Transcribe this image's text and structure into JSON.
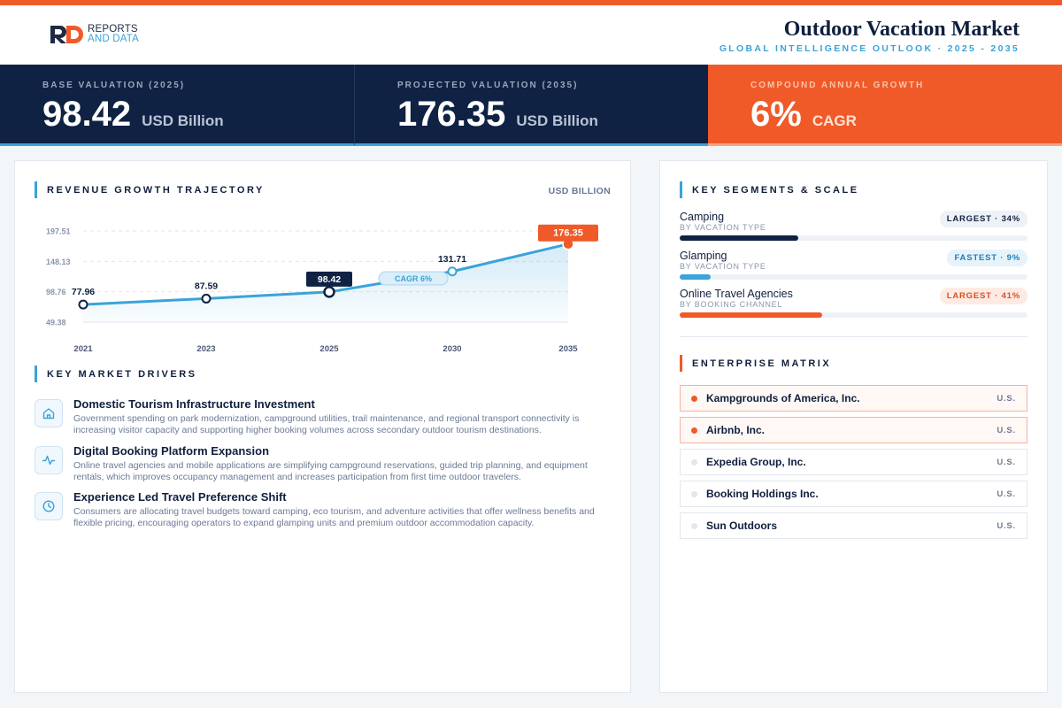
{
  "brand": {
    "logo_line1": "REPORTS",
    "logo_line2": "AND DATA"
  },
  "header": {
    "title": "Outdoor Vacation Market",
    "subtitle": "GLOBAL INTELLIGENCE OUTLOOK · 2025 - 2035"
  },
  "kpis": [
    {
      "label": "BASE VALUATION (2025)",
      "value": "98.42",
      "unit": "USD Billion"
    },
    {
      "label": "PROJECTED VALUATION (2035)",
      "value": "176.35",
      "unit": "USD Billion"
    },
    {
      "label": "COMPOUND ANNUAL GROWTH",
      "value": "6%",
      "unit": "CAGR"
    }
  ],
  "revenue": {
    "section_title": "REVENUE GROWTH TRAJECTORY",
    "unit_label": "USD BILLION",
    "cagr_pill": "CAGR 6%"
  },
  "chart_data": {
    "type": "area",
    "title": "REVENUE GROWTH TRAJECTORY",
    "ylabel": "USD BILLION",
    "x": [
      "2021",
      "2023",
      "2025",
      "2030",
      "2035"
    ],
    "values": [
      77.96,
      87.59,
      98.42,
      131.71,
      176.35
    ],
    "value_labels": [
      "77.96",
      "87.59",
      "98.42",
      "131.71",
      "176.35"
    ],
    "y_ticks": [
      49.38,
      98.76,
      148.13,
      197.51
    ],
    "y_tick_labels": [
      "49.38",
      "98.76",
      "148.13",
      "197.51"
    ],
    "ylim": [
      49.38,
      197.51
    ],
    "grid": true,
    "annotation": "CAGR 6%",
    "highlight_points": [
      "2025",
      "2035"
    ],
    "colors": {
      "line": "#3aa3d9",
      "base_marker": "#0f2243",
      "end_marker": "#f05a28"
    }
  },
  "drivers": {
    "section_title": "KEY MARKET DRIVERS",
    "items": [
      {
        "icon": "home-icon",
        "title": "Domestic Tourism Infrastructure Investment",
        "desc": "Government spending on park modernization, campground utilities, trail maintenance, and regional transport connectivity is increasing visitor capacity and supporting higher booking volumes across secondary outdoor tourism destinations."
      },
      {
        "icon": "activity-icon",
        "title": "Digital Booking Platform Expansion",
        "desc": "Online travel agencies and mobile applications are simplifying campground reservations, guided trip planning, and equipment rentals, which improves occupancy management and increases participation from first time outdoor travelers."
      },
      {
        "icon": "clock-icon",
        "title": "Experience Led Travel Preference Shift",
        "desc": "Consumers are allocating travel budgets toward camping, eco tourism, and adventure activities that offer wellness benefits and flexible pricing, encouraging operators to expand glamping units and premium outdoor accommodation capacity."
      }
    ]
  },
  "segments": {
    "section_title": "KEY SEGMENTS & SCALE",
    "items": [
      {
        "name": "Camping",
        "category": "BY VACATION TYPE",
        "badge": "LARGEST · 34%",
        "share": 34,
        "color": "#0f2243",
        "badge_bg": "#eef1f5",
        "badge_fg": "#0f2243"
      },
      {
        "name": "Glamping",
        "category": "BY VACATION TYPE",
        "badge": "FASTEST · 9%",
        "share": 9,
        "color": "#3aa3d9",
        "badge_bg": "#e6f3fb",
        "badge_fg": "#1f7fb5"
      },
      {
        "name": "Online Travel Agencies",
        "category": "BY BOOKING CHANNEL",
        "badge": "LARGEST · 41%",
        "share": 41,
        "color": "#f05a28",
        "badge_bg": "#fdebe3",
        "badge_fg": "#d8501f"
      }
    ]
  },
  "enterprise": {
    "section_title": "ENTERPRISE MATRIX",
    "items": [
      {
        "name": "Kampgrounds of America, Inc.",
        "country": "U.S.",
        "highlight": true
      },
      {
        "name": "Airbnb, Inc.",
        "country": "U.S.",
        "highlight": true
      },
      {
        "name": "Expedia Group, Inc.",
        "country": "U.S.",
        "highlight": false
      },
      {
        "name": "Booking Holdings Inc.",
        "country": "U.S.",
        "highlight": false
      },
      {
        "name": "Sun Outdoors",
        "country": "U.S.",
        "highlight": false
      }
    ]
  }
}
